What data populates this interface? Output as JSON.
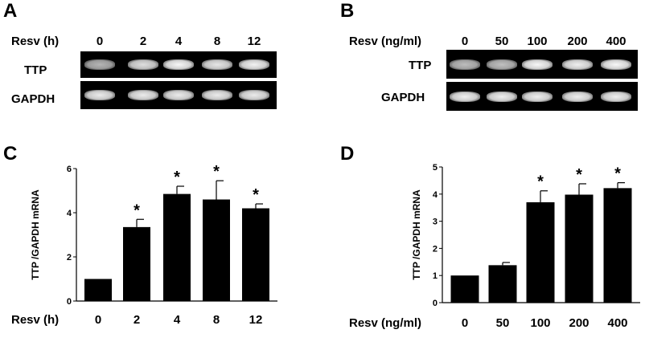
{
  "panels": {
    "A": {
      "label": "A",
      "axis_label": "Resv (h)",
      "lanes": [
        "0",
        "2",
        "4",
        "8",
        "12"
      ],
      "rows": [
        {
          "name": "TTP",
          "intensities": [
            0.55,
            0.8,
            0.95,
            0.85,
            0.92
          ]
        },
        {
          "name": "GAPDH",
          "intensities": [
            0.88,
            0.88,
            0.88,
            0.88,
            0.88
          ]
        }
      ]
    },
    "B": {
      "label": "B",
      "axis_label": "Resv (ng/ml)",
      "lanes": [
        "0",
        "50",
        "100",
        "200",
        "400"
      ],
      "rows": [
        {
          "name": "TTP",
          "intensities": [
            0.6,
            0.62,
            0.95,
            0.9,
            0.95
          ]
        },
        {
          "name": "GAPDH",
          "intensities": [
            0.9,
            0.9,
            0.9,
            0.9,
            0.9
          ]
        }
      ]
    },
    "C": {
      "label": "C"
    },
    "D": {
      "label": "D"
    }
  },
  "chart_data": [
    {
      "type": "bar",
      "panel": "C",
      "ylabel": "TTP /GAPDH mRNA",
      "xlabel": "Resv (h)",
      "categories": [
        "0",
        "2",
        "4",
        "8",
        "12"
      ],
      "values": [
        1.0,
        3.35,
        4.85,
        4.6,
        4.2
      ],
      "errors": [
        0,
        0.35,
        0.35,
        0.85,
        0.2
      ],
      "significance": [
        "",
        "*",
        "*",
        "*",
        "*"
      ],
      "ylim": [
        0,
        6
      ],
      "yticks": [
        "0",
        "2",
        "4",
        "6"
      ]
    },
    {
      "type": "bar",
      "panel": "D",
      "ylabel": "TTP /GAPDH mRNA",
      "xlabel": "Resv (ng/ml)",
      "categories": [
        "0",
        "50",
        "100",
        "200",
        "400"
      ],
      "values": [
        1.0,
        1.38,
        3.7,
        3.98,
        4.22
      ],
      "errors": [
        0,
        0.1,
        0.42,
        0.4,
        0.2
      ],
      "significance": [
        "",
        "",
        "*",
        "*",
        "*"
      ],
      "ylim": [
        0,
        5
      ],
      "yticks": [
        "0",
        "1",
        "2",
        "3",
        "4",
        "5"
      ]
    }
  ]
}
